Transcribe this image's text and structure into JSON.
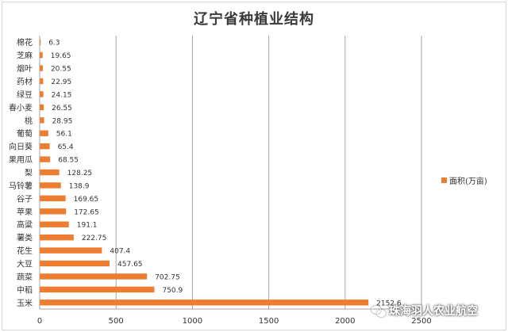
{
  "chart_data": {
    "type": "bar",
    "orientation": "horizontal",
    "title": "辽宁省种植业结构",
    "categories": [
      "棉花",
      "芝麻",
      "烟叶",
      "药材",
      "绿豆",
      "春小麦",
      "桃",
      "葡萄",
      "向日葵",
      "果用瓜",
      "梨",
      "马铃薯",
      "谷子",
      "苹果",
      "高粱",
      "薯类",
      "花生",
      "大豆",
      "蔬菜",
      "中稻",
      "玉米"
    ],
    "series": [
      {
        "name": "面积(万亩)",
        "values": [
          6.3,
          19.65,
          20.55,
          22.95,
          24.15,
          26.55,
          28.95,
          56.1,
          65.4,
          68.55,
          128.25,
          138.9,
          169.65,
          172.65,
          191.1,
          222.75,
          407.4,
          457.65,
          702.75,
          750.9,
          2152.6
        ],
        "value_labels": [
          "6.3",
          "19.65",
          "20.55",
          "22.95",
          "24.15",
          "26.55",
          "28.95",
          "56.1",
          "65.4",
          "68.55",
          "128.25",
          "138.9",
          "169.65",
          "172.65",
          "191.1",
          "222.75",
          "407.4",
          "457.65",
          "702.75",
          "750.9",
          "2152.6"
        ],
        "color": "#ED7D31"
      }
    ],
    "xlim": [
      0,
      2500
    ],
    "xticks": [
      0,
      500,
      1000,
      1500,
      2000,
      2500
    ],
    "xtick_labels": [
      "0",
      "500",
      "1000",
      "1500",
      "2000",
      "2500"
    ],
    "grid": "vertical",
    "legend_position": "right"
  },
  "watermark": "珠海羽人农业航空",
  "watermark_icon": "wechat-icon",
  "colors": {
    "bar": "#ED7D31",
    "grid": "#a6a6a6",
    "text": "#333333"
  }
}
